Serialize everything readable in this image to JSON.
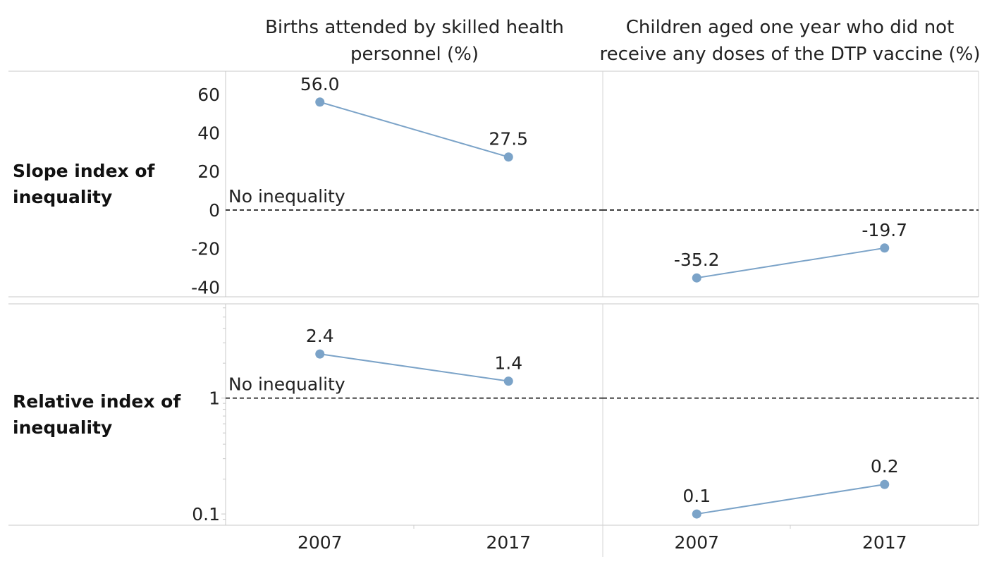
{
  "chart_data": {
    "type": "line",
    "column_headers": [
      "Births attended by skilled health personnel (%)",
      "Children aged one year who did not receive any doses of the DTP vaccine (%)"
    ],
    "row_headers": [
      "Slope index of inequality",
      "Relative index of inequality"
    ],
    "reference_label": "No inequality",
    "x_categories": [
      "2007",
      "2017"
    ],
    "series_color": "#7ba3c8",
    "panels": [
      {
        "row": 0,
        "col": 0,
        "scale": "linear",
        "ylim": [
          -45,
          72
        ],
        "yticks": [
          {
            "v": 60,
            "label": "60"
          },
          {
            "v": 40,
            "label": "40"
          },
          {
            "v": 20,
            "label": "20"
          },
          {
            "v": 0,
            "label": "0"
          },
          {
            "v": -20,
            "label": "-20"
          },
          {
            "v": -40,
            "label": "-40"
          }
        ],
        "reference": 0,
        "points": [
          {
            "x": "2007",
            "y": 56.0,
            "label": "56.0"
          },
          {
            "x": "2017",
            "y": 27.5,
            "label": "27.5"
          }
        ]
      },
      {
        "row": 0,
        "col": 1,
        "scale": "linear",
        "ylim": [
          -45,
          72
        ],
        "yticks": [],
        "reference": 0,
        "points": [
          {
            "x": "2007",
            "y": -35.2,
            "label": "-35.2"
          },
          {
            "x": "2017",
            "y": -19.7,
            "label": "-19.7"
          }
        ]
      },
      {
        "row": 1,
        "col": 0,
        "scale": "log",
        "ylim": [
          0.08,
          6.5
        ],
        "yticks": [
          {
            "v": 1,
            "label": "1"
          },
          {
            "v": 0.1,
            "label": "0.1"
          }
        ],
        "reference": 1,
        "points": [
          {
            "x": "2007",
            "y": 2.4,
            "label": "2.4"
          },
          {
            "x": "2017",
            "y": 1.4,
            "label": "1.4"
          }
        ]
      },
      {
        "row": 1,
        "col": 1,
        "scale": "log",
        "ylim": [
          0.08,
          6.5
        ],
        "yticks": [],
        "reference": 1,
        "points": [
          {
            "x": "2007",
            "y": 0.1,
            "label": "0.1"
          },
          {
            "x": "2017",
            "y": 0.18,
            "label": "0.2"
          }
        ]
      }
    ]
  }
}
